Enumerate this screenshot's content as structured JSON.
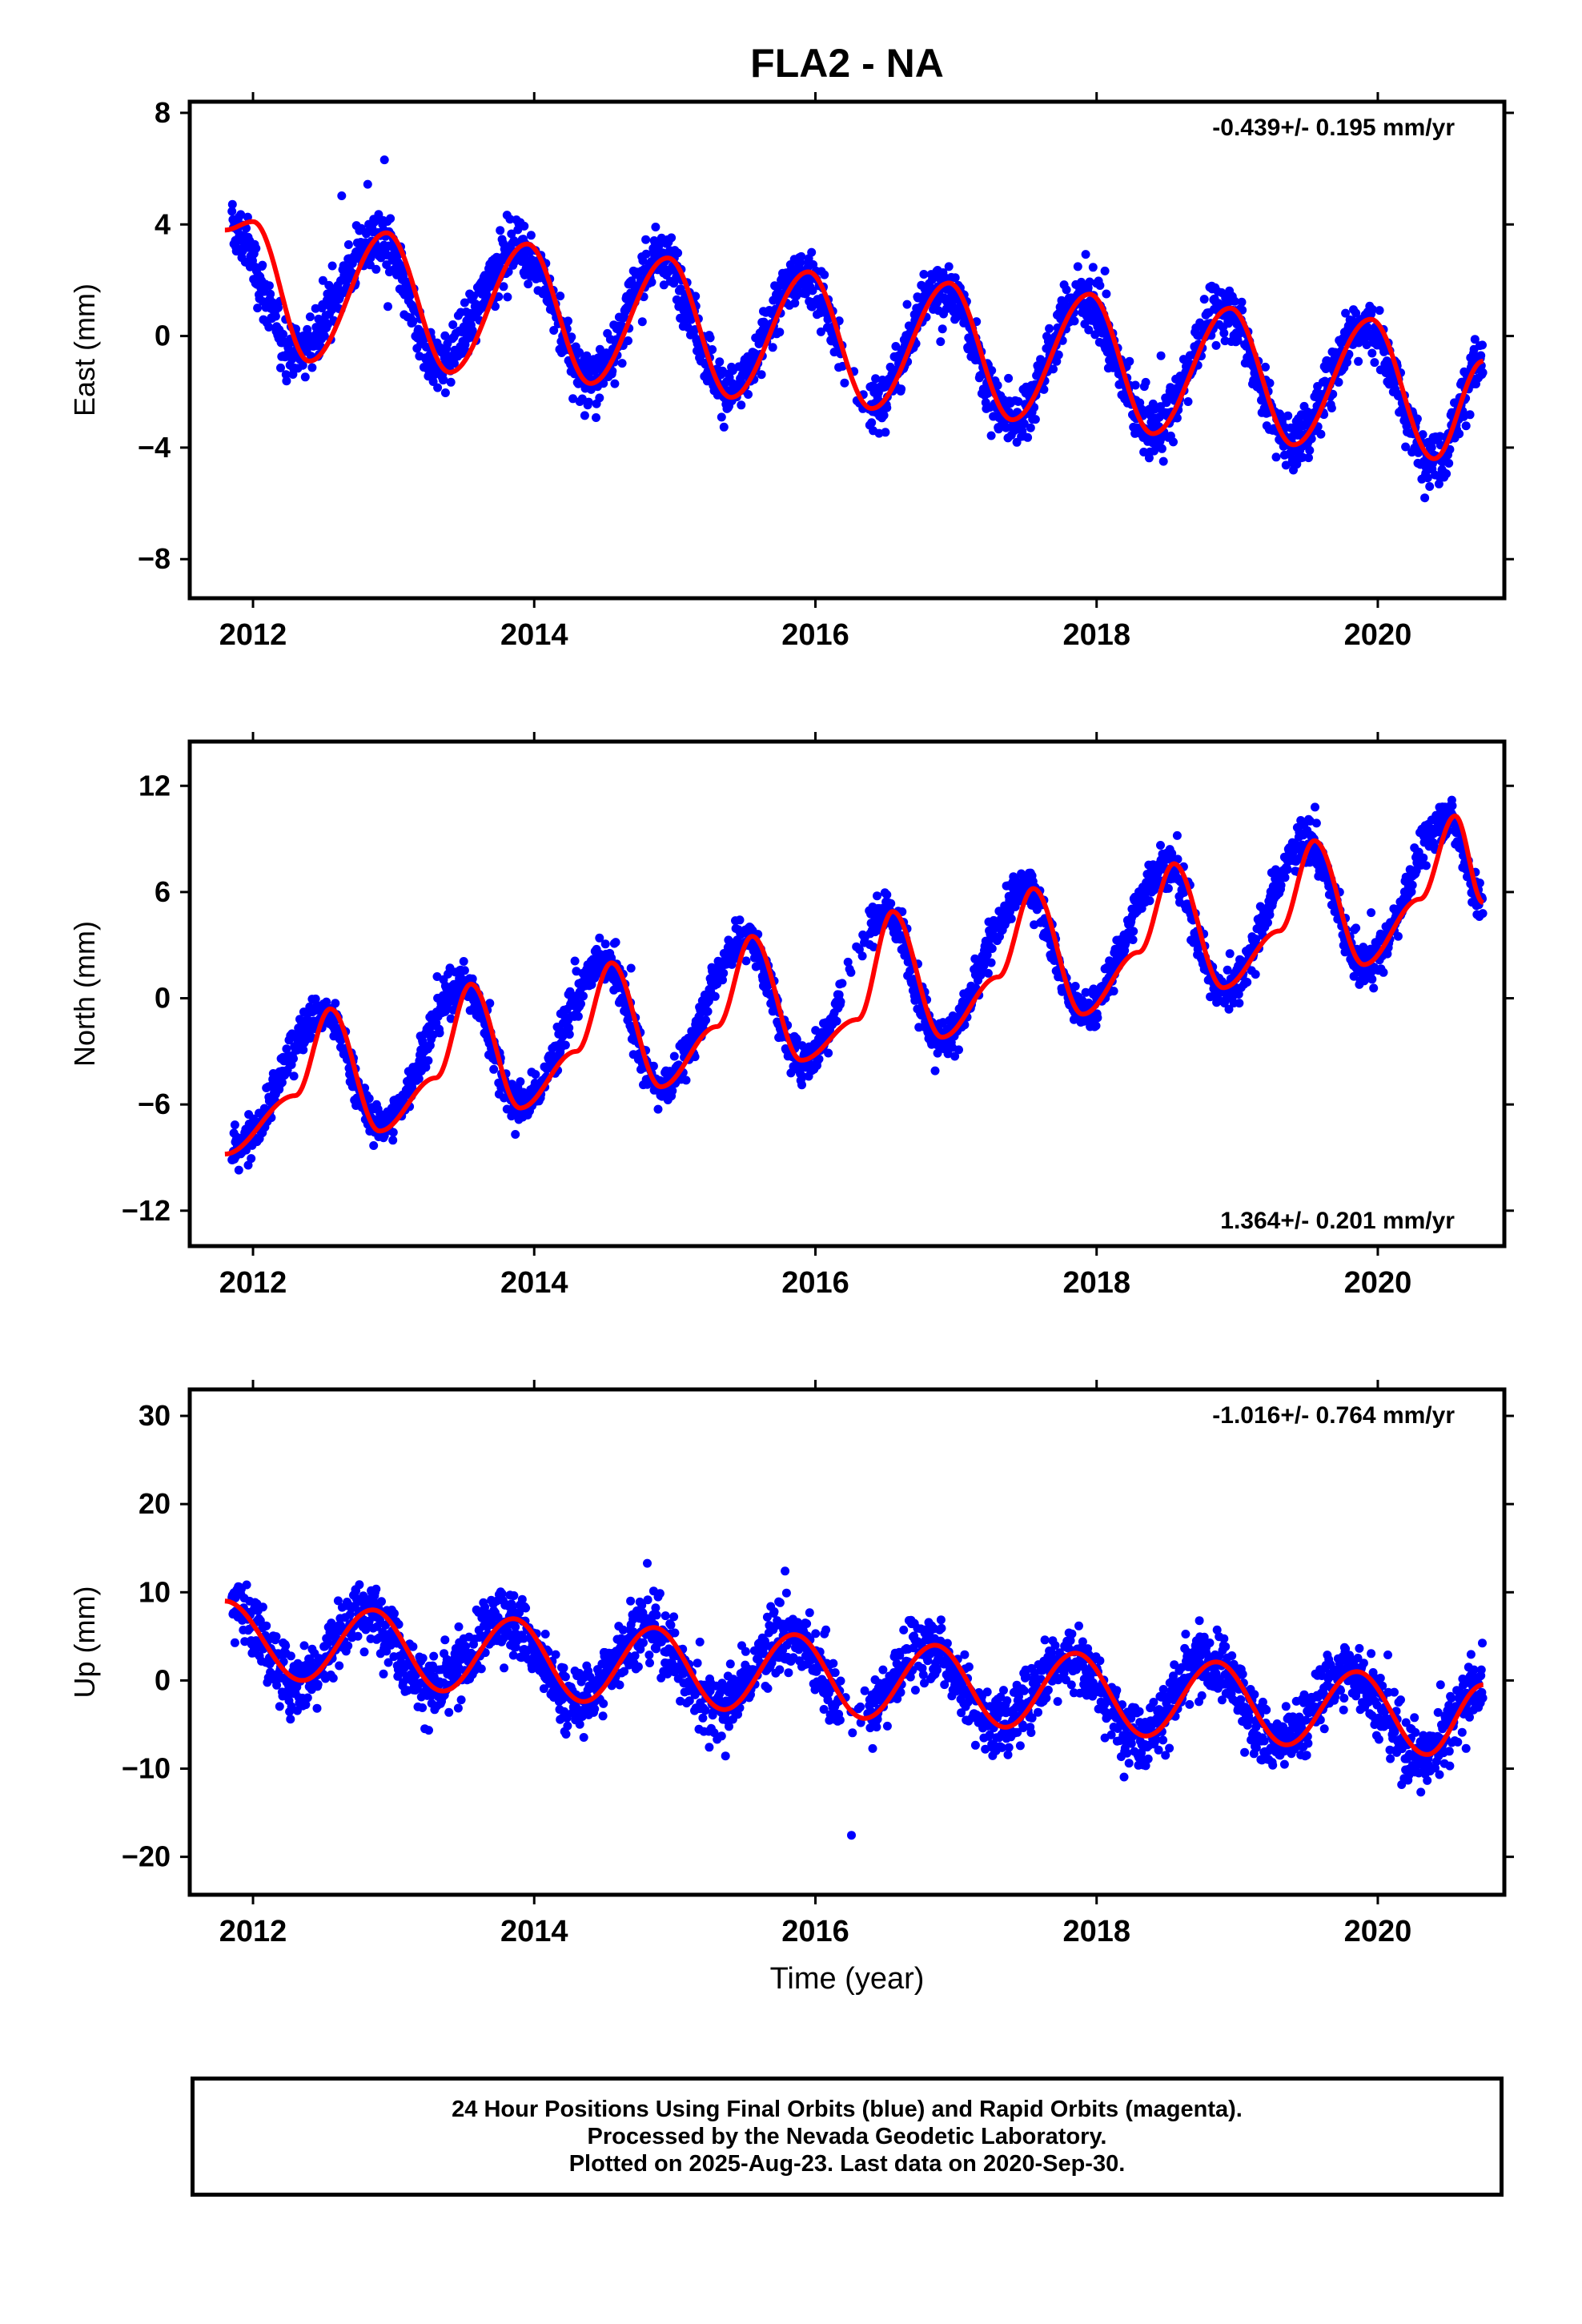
{
  "figure": {
    "title": "FLA2 - NA",
    "xlabel": "Time (year)",
    "caption": [
      "24 Hour Positions Using Final Orbits (blue) and Rapid Orbits (magenta).",
      "Processed by the Nevada Geodetic Laboratory.",
      "Plotted on 2025-Aug-23. Last data on 2020-Sep-30."
    ],
    "colors": {
      "final_orbits": "#0000ff",
      "fit": "#ff0000",
      "frame": "#000000",
      "background": "#ffffff"
    }
  },
  "chart_data": [
    {
      "type": "scatter",
      "component": "east",
      "ylabel": "East (mm)",
      "rate_text": "-0.439+/- 0.195 mm/yr",
      "rate_position": "top-right",
      "xlim": [
        2011.55,
        2020.9
      ],
      "ylim": [
        -9.4,
        8.4
      ],
      "xticks": [
        2012,
        2014,
        2016,
        2018,
        2020
      ],
      "yticks": [
        -8,
        -4,
        0,
        4,
        8
      ],
      "yticklabels": [
        "−8",
        "−4",
        "0",
        "4",
        "8"
      ],
      "grid": false,
      "series": [
        {
          "role": "points",
          "color": "#0000ff",
          "x": [
            2011.85,
            2012.3,
            2012.9,
            2013.3,
            2013.9,
            2014.4,
            2014.9,
            2015.4,
            2015.9,
            2016.4,
            2016.9,
            2017.4,
            2017.9,
            2018.4,
            2018.9,
            2019.4,
            2019.9,
            2020.4,
            2020.75
          ],
          "y": [
            3.8,
            -0.5,
            3.5,
            -1.0,
            3.2,
            -1.5,
            2.8,
            -2.0,
            2.2,
            -2.5,
            1.8,
            -3.0,
            1.4,
            -3.4,
            1.0,
            -3.8,
            0.5,
            -4.4,
            -0.9
          ]
        },
        {
          "role": "fit",
          "color": "#ff0000",
          "x": [
            2011.8,
            2012.0,
            2012.4,
            2012.95,
            2013.4,
            2013.95,
            2014.4,
            2014.95,
            2015.4,
            2015.95,
            2016.4,
            2016.95,
            2017.4,
            2017.95,
            2018.4,
            2018.95,
            2019.4,
            2019.95,
            2020.4,
            2020.75
          ],
          "y": [
            3.8,
            4.1,
            -0.9,
            3.7,
            -1.3,
            3.3,
            -1.7,
            2.8,
            -2.2,
            2.3,
            -2.6,
            1.9,
            -3.0,
            1.5,
            -3.5,
            1.0,
            -3.9,
            0.6,
            -4.4,
            -0.9
          ]
        }
      ]
    },
    {
      "type": "scatter",
      "component": "north",
      "ylabel": "North (mm)",
      "rate_text": "1.364+/- 0.201 mm/yr",
      "rate_position": "bottom-right",
      "xlim": [
        2011.55,
        2020.9
      ],
      "ylim": [
        -14,
        14.5
      ],
      "xticks": [
        2012,
        2014,
        2016,
        2018,
        2020
      ],
      "yticks": [
        -12,
        -6,
        0,
        6,
        12
      ],
      "yticklabels": [
        "−12",
        "−6",
        "0",
        "6",
        "12"
      ],
      "grid": false,
      "series": [
        {
          "role": "points",
          "color": "#0000ff",
          "x": [
            2011.85,
            2012.5,
            2012.9,
            2013.5,
            2013.9,
            2014.5,
            2014.9,
            2015.5,
            2015.9,
            2016.5,
            2016.9,
            2017.5,
            2017.9,
            2018.5,
            2018.9,
            2019.5,
            2019.9,
            2020.5,
            2020.75
          ],
          "y": [
            -8.8,
            -0.8,
            -7.2,
            0.8,
            -6.0,
            2.0,
            -5.0,
            3.5,
            -3.5,
            4.8,
            -2.2,
            6.2,
            -0.8,
            7.5,
            0.5,
            8.8,
            1.8,
            10.2,
            5.4
          ]
        },
        {
          "role": "fit",
          "color": "#ff0000",
          "x": [
            2011.8,
            2012.3,
            2012.55,
            2012.9,
            2013.3,
            2013.55,
            2013.9,
            2014.3,
            2014.55,
            2014.9,
            2015.3,
            2015.55,
            2015.9,
            2016.3,
            2016.55,
            2016.9,
            2017.3,
            2017.55,
            2017.9,
            2018.3,
            2018.55,
            2018.9,
            2019.3,
            2019.55,
            2019.9,
            2020.3,
            2020.55,
            2020.75
          ],
          "y": [
            -8.8,
            -5.5,
            -0.6,
            -7.5,
            -4.5,
            0.8,
            -6.2,
            -3.0,
            2.0,
            -5.0,
            -1.6,
            3.5,
            -3.5,
            -1.2,
            4.9,
            -2.2,
            1.2,
            6.2,
            -0.9,
            2.6,
            7.6,
            0.6,
            3.8,
            8.9,
            1.9,
            5.6,
            10.3,
            5.4
          ]
        }
      ]
    },
    {
      "type": "scatter",
      "component": "up",
      "ylabel": "Up (mm)",
      "rate_text": "-1.016+/- 0.764 mm/yr",
      "rate_position": "top-right",
      "xlim": [
        2011.55,
        2020.9
      ],
      "ylim": [
        -24.3,
        33
      ],
      "xticks": [
        2012,
        2014,
        2016,
        2018,
        2020
      ],
      "yticks": [
        -20,
        -10,
        0,
        10,
        20,
        30
      ],
      "yticklabels": [
        "−20",
        "−10",
        "0",
        "10",
        "20",
        "30"
      ],
      "grid": false,
      "series": [
        {
          "role": "points",
          "color": "#0000ff",
          "x": [
            2011.85,
            2012.3,
            2012.8,
            2013.3,
            2013.8,
            2014.3,
            2014.8,
            2015.3,
            2015.8,
            2016.3,
            2016.8,
            2017.3,
            2017.8,
            2018.3,
            2018.8,
            2019.3,
            2019.8,
            2020.3,
            2020.75
          ],
          "y": [
            8.8,
            0.0,
            8.0,
            -1.0,
            7.0,
            -2.5,
            6.0,
            -3.0,
            5.0,
            -4.0,
            4.0,
            -5.0,
            3.0,
            -6.0,
            2.0,
            -7.0,
            1.0,
            -8.5,
            -0.5
          ]
        },
        {
          "role": "fit",
          "color": "#ff0000",
          "x": [
            2011.8,
            2012.35,
            2012.85,
            2013.35,
            2013.85,
            2014.35,
            2014.85,
            2015.35,
            2015.85,
            2016.35,
            2016.85,
            2017.35,
            2017.85,
            2018.35,
            2018.85,
            2019.35,
            2019.85,
            2020.35,
            2020.75
          ],
          "y": [
            9.0,
            0.0,
            8.0,
            -1.2,
            7.0,
            -2.4,
            6.0,
            -3.3,
            5.2,
            -4.3,
            4.0,
            -5.3,
            3.1,
            -6.3,
            2.1,
            -7.3,
            1.0,
            -8.4,
            -0.5
          ]
        }
      ]
    }
  ]
}
